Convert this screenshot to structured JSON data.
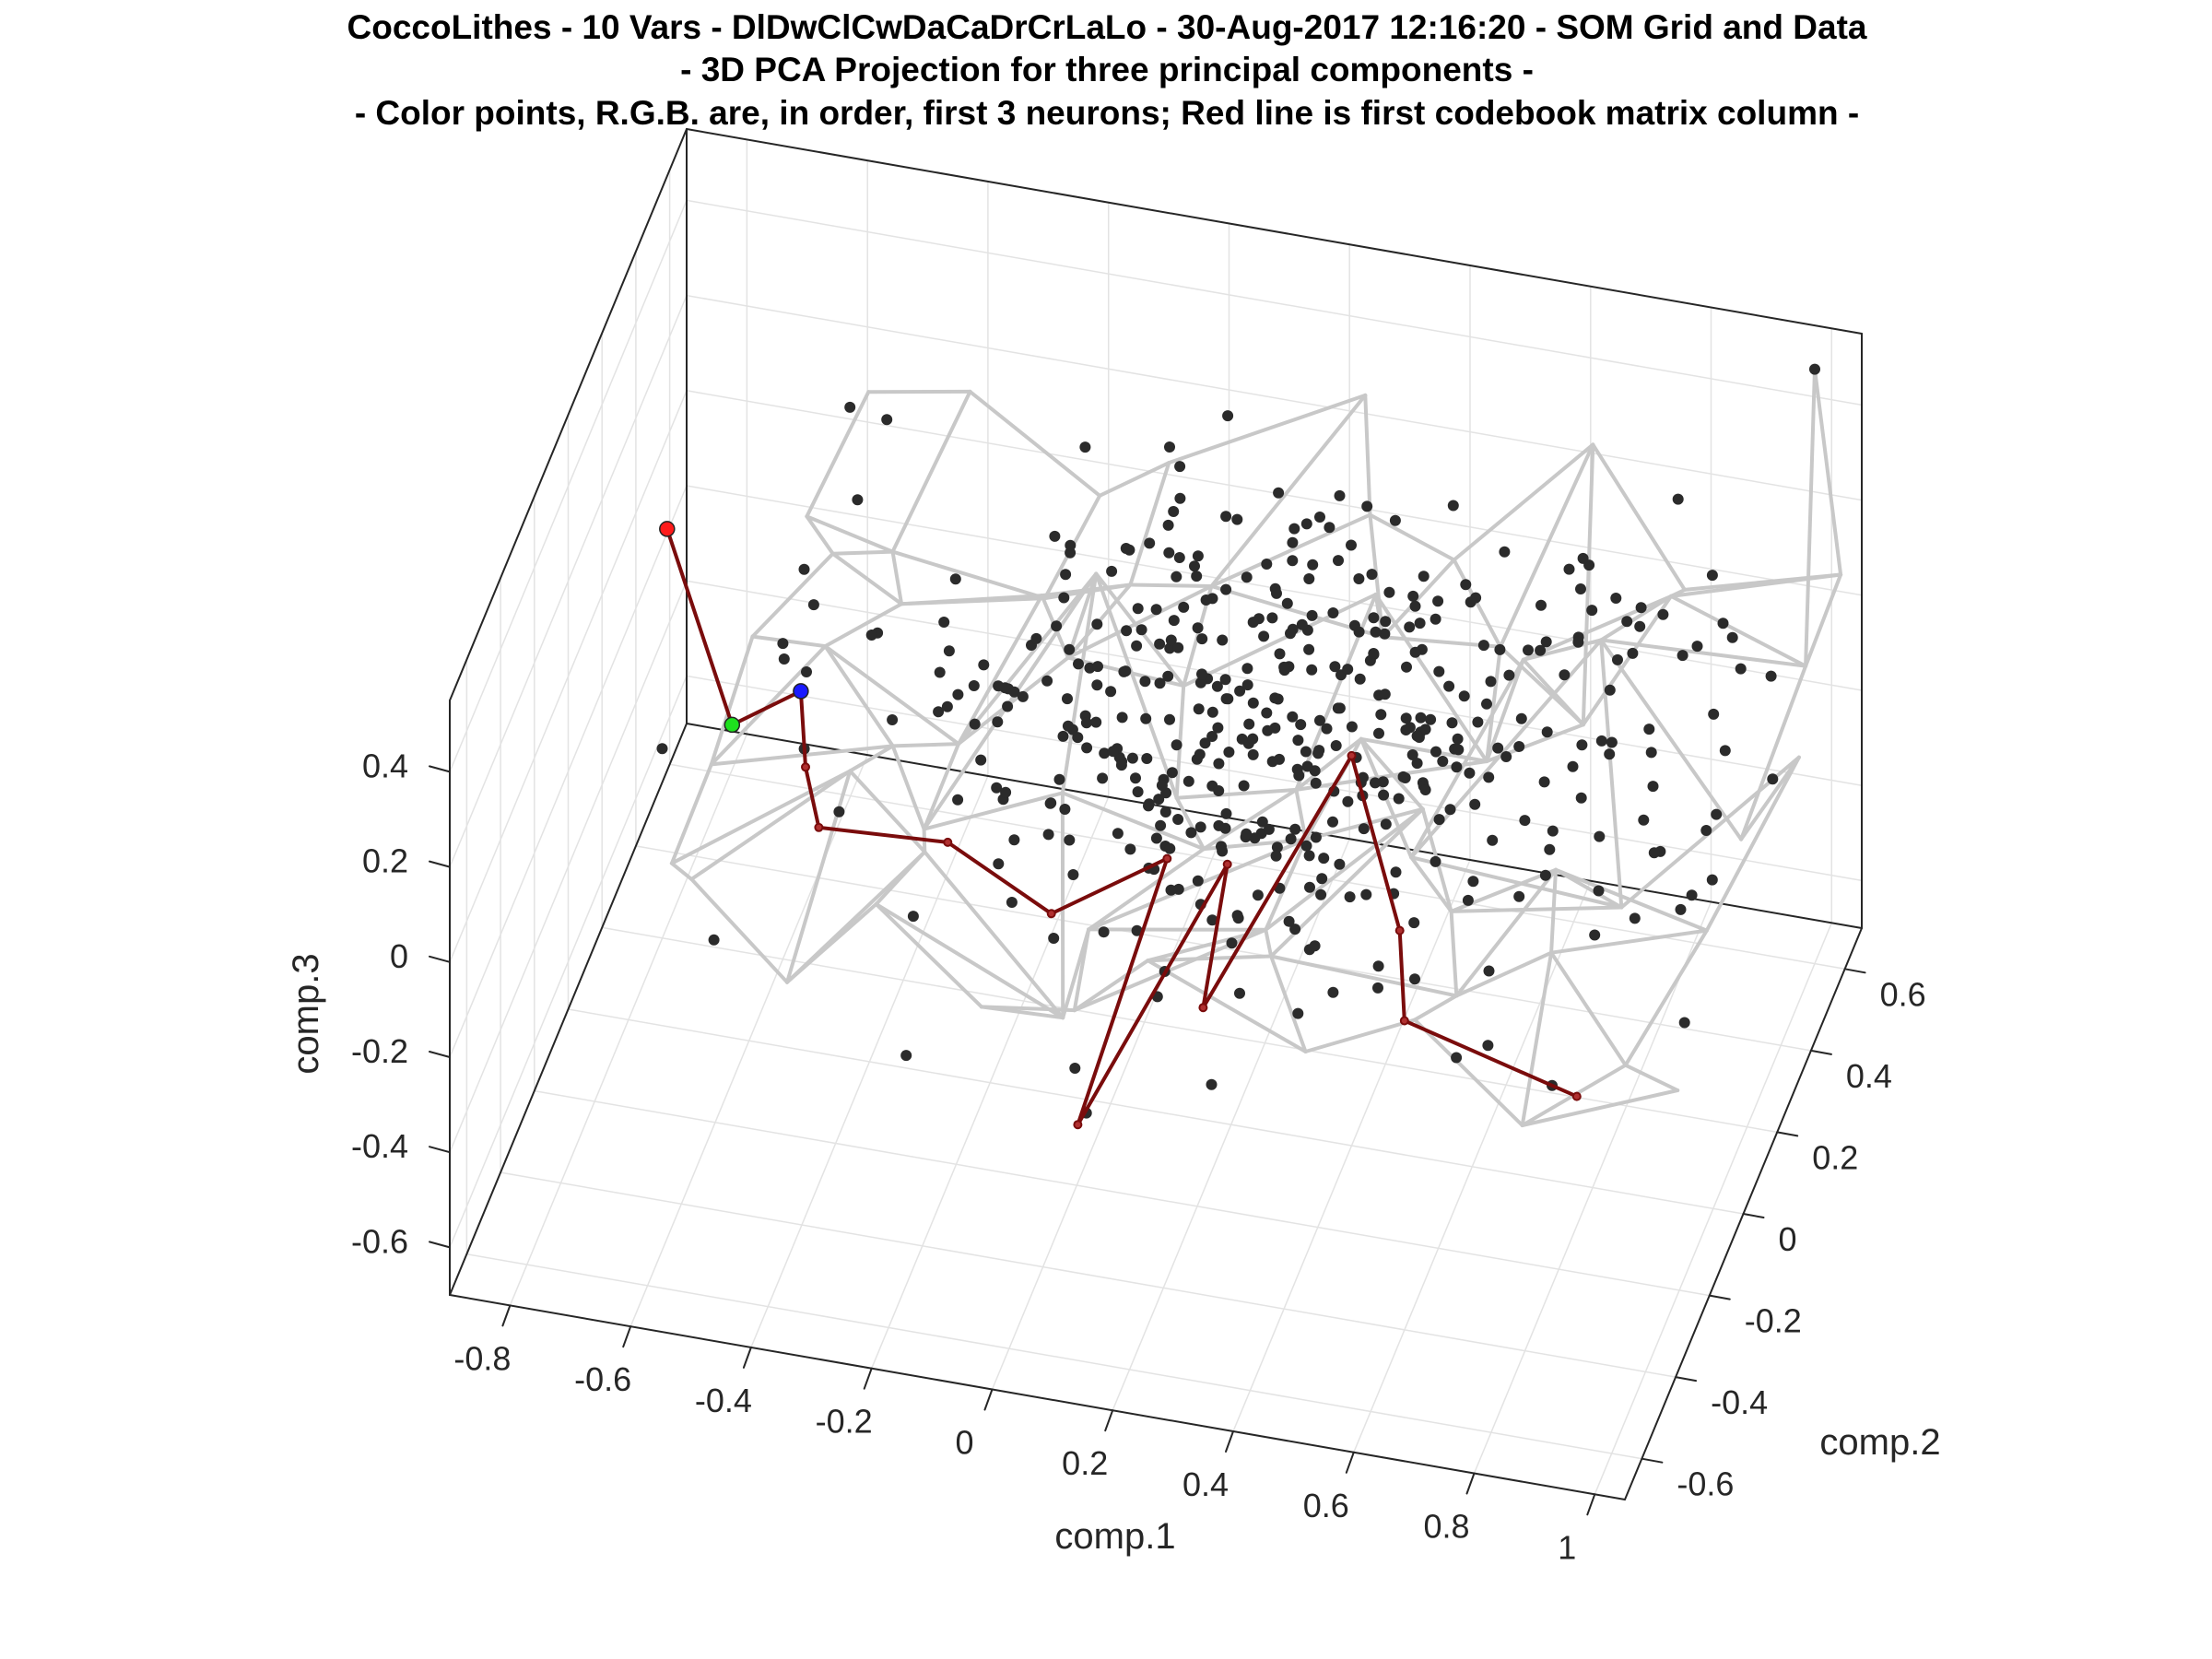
{
  "figure": {
    "title_lines": [
      "CoccoLithes - 10 Vars - DlDwClCwDaCaDrCrLaLo - 30-Aug-2017 12:16:20 - SOM Grid and Data",
      "- 3D PCA Projection for three principal components -",
      "- Color points, R.G.B. are, in order, first 3 neurons; Red line is first codebook matrix column -"
    ]
  },
  "chart_data": {
    "type": "scatter",
    "projection": "3d",
    "grid": true,
    "xlabel": "comp.1",
    "ylabel": "comp.2",
    "zlabel": "comp.3",
    "xlim": [
      -0.9,
      1.05
    ],
    "ylim": [
      -0.7,
      0.7
    ],
    "zlim": [
      -0.7,
      0.55
    ],
    "x_ticks": [
      "-0.8",
      "-0.6",
      "-0.4",
      "-0.2",
      "0",
      "0.2",
      "0.4",
      "0.6",
      "0.8",
      "1"
    ],
    "y_ticks": [
      "-0.6",
      "-0.4",
      "-0.2",
      "0",
      "0.2",
      "0.4",
      "0.6"
    ],
    "z_ticks": [
      "-0.6",
      "-0.4",
      "-0.2",
      "0",
      "0.2",
      "0.4"
    ],
    "colors": {
      "data_points": "#2b2b2b",
      "som_grid": "#c8c8c8",
      "codebook_line": "#7a0c0c",
      "neuron_1": "#ff1a1a",
      "neuron_2": "#1ee01e",
      "neuron_3": "#1a1aff"
    },
    "data_points": {
      "count": 450,
      "center": [
        0.25,
        0.1,
        0.05
      ],
      "spread": [
        0.32,
        0.26,
        0.12
      ]
    },
    "som_grid": {
      "rows": 7,
      "cols": 10,
      "x_range": [
        -0.6,
        1.0
      ],
      "y_range": [
        -0.55,
        0.65
      ],
      "z_level": 0.05,
      "outlier_node": [
        1.0,
        0.6,
        0.55
      ]
    },
    "neurons": [
      {
        "name": "neuron 1",
        "color": "red",
        "point": [
          -0.75,
          0.05,
          0.3
        ]
      },
      {
        "name": "neuron 2",
        "color": "green",
        "point": [
          -0.6,
          -0.1,
          0.05
        ]
      },
      {
        "name": "neuron 3",
        "color": "blue",
        "point": [
          -0.5,
          -0.05,
          0.1
        ]
      }
    ],
    "codebook_column": {
      "points": [
        [
          -0.75,
          0.05,
          0.3
        ],
        [
          -0.6,
          -0.1,
          0.05
        ],
        [
          -0.5,
          -0.05,
          0.1
        ],
        [
          -0.45,
          -0.2,
          0.08
        ],
        [
          -0.4,
          -0.3,
          0.05
        ],
        [
          -0.2,
          -0.25,
          0.02
        ],
        [
          0.0,
          -0.35,
          0.0
        ],
        [
          0.15,
          -0.2,
          0.02
        ],
        [
          0.1,
          -0.55,
          -0.25
        ],
        [
          0.25,
          -0.2,
          0.03
        ],
        [
          0.28,
          -0.45,
          -0.05
        ],
        [
          0.4,
          0.0,
          0.12
        ],
        [
          0.55,
          -0.25,
          0.0
        ],
        [
          0.6,
          -0.4,
          -0.05
        ],
        [
          0.9,
          -0.45,
          -0.1
        ]
      ]
    }
  }
}
